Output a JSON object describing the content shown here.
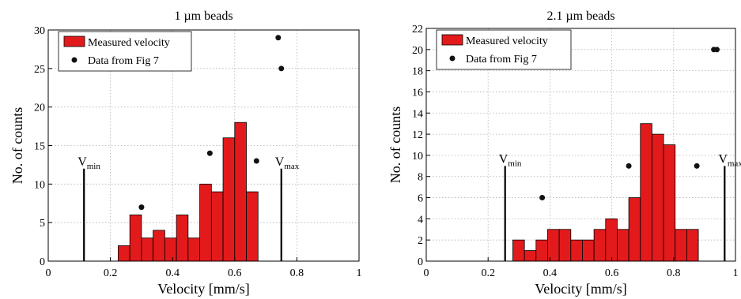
{
  "chart_data": [
    {
      "type": "bar",
      "title": "1 µm beads",
      "xlabel": "Velocity [mm/s]",
      "ylabel": "No. of counts",
      "xlim": [
        0,
        1
      ],
      "ylim": [
        0,
        30
      ],
      "xticks": [
        "0",
        "0.2",
        "0.4",
        "0.6",
        "0.8",
        "1"
      ],
      "yticks": [
        "0",
        "5",
        "10",
        "15",
        "20",
        "25",
        "30"
      ],
      "grid": true,
      "legend_position": "top-left",
      "bar_color": "#e31a1c",
      "series": [
        {
          "name": "Measured velocity",
          "kind": "histogram",
          "bin_width": 0.0375,
          "bin_starts": [
            0.225,
            0.2625,
            0.3,
            0.3375,
            0.375,
            0.4125,
            0.45,
            0.4875,
            0.525,
            0.5625,
            0.6,
            0.6375,
            0.675,
            0.7125
          ],
          "values": [
            2,
            6,
            3,
            4,
            3,
            6,
            3,
            10,
            9,
            16,
            18,
            9,
            0,
            0
          ]
        },
        {
          "name": "Data from Fig 7",
          "kind": "points",
          "x": [
            0.3,
            0.52,
            0.67,
            0.74,
            0.75
          ],
          "y": [
            7,
            14,
            13,
            29,
            25
          ]
        }
      ],
      "markers": [
        {
          "label": "V",
          "sub": "min",
          "x": 0.115,
          "height": 12
        },
        {
          "label": "V",
          "sub": "max",
          "x": 0.75,
          "height": 12
        }
      ]
    },
    {
      "type": "bar",
      "title": "2.1 µm beads",
      "xlabel": "Velocity [mm/s]",
      "ylabel": "No. of counts",
      "xlim": [
        0,
        1
      ],
      "ylim": [
        0,
        22
      ],
      "xticks": [
        "0",
        "0.2",
        "0.4",
        "0.6",
        "0.8",
        "1"
      ],
      "yticks": [
        "0",
        "2",
        "4",
        "6",
        "8",
        "10",
        "12",
        "14",
        "16",
        "18",
        "20",
        "22"
      ],
      "grid": true,
      "legend_position": "top-left",
      "bar_color": "#e31a1c",
      "series": [
        {
          "name": "Measured velocity",
          "kind": "histogram",
          "bin_width": 0.0375,
          "bin_starts": [
            0.28,
            0.3175,
            0.355,
            0.3925,
            0.43,
            0.4675,
            0.505,
            0.5425,
            0.58,
            0.6175,
            0.655,
            0.6925,
            0.73,
            0.7675,
            0.805,
            0.8425,
            0.88,
            0.9175,
            0.955
          ],
          "values": [
            2,
            1,
            2,
            3,
            3,
            2,
            2,
            3,
            4,
            3,
            6,
            13,
            12,
            11,
            3,
            3,
            0,
            0,
            0
          ]
        },
        {
          "name": "Data from Fig 7",
          "kind": "points",
          "x": [
            0.375,
            0.655,
            0.875,
            0.93,
            0.94
          ],
          "y": [
            6,
            9,
            9,
            20,
            20
          ]
        }
      ],
      "markers": [
        {
          "label": "V",
          "sub": "min",
          "x": 0.255,
          "height": 9
        },
        {
          "label": "V",
          "sub": "max",
          "x": 0.965,
          "height": 9
        }
      ]
    }
  ]
}
